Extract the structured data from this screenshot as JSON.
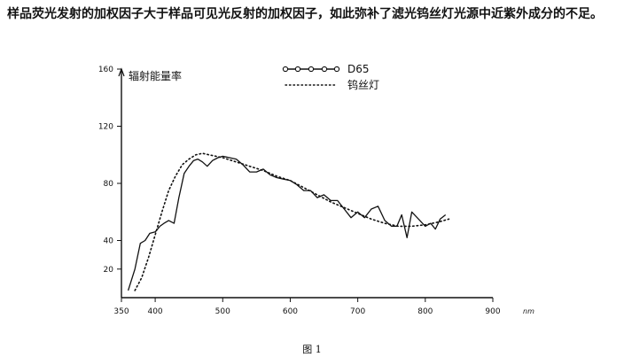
{
  "paragraph": "样品荧光发射的加权因子大于样品可见光反射的加权因子，如此弥补了滤光钨丝灯光源中近紫外成分的不足。",
  "caption": "图 1",
  "chart_data": {
    "type": "line",
    "title": "",
    "ylabel": "辐射能量率",
    "xlabel": "",
    "x_unit": "nm",
    "xlim": [
      350,
      900
    ],
    "ylim": [
      0,
      160
    ],
    "x_ticks": [
      "350",
      "400",
      "500",
      "600",
      "700",
      "800",
      "900"
    ],
    "y_ticks": [
      "20",
      "40",
      "80",
      "120",
      "160"
    ],
    "legend_position": "top-center",
    "series": [
      {
        "name": "D65",
        "style": "solid",
        "color": "#111111",
        "x": [
          360,
          370,
          378,
          385,
          392,
          400,
          407,
          413,
          420,
          428,
          435,
          443,
          450,
          457,
          463,
          470,
          477,
          485,
          493,
          500,
          510,
          520,
          530,
          540,
          550,
          560,
          570,
          580,
          590,
          600,
          610,
          620,
          630,
          640,
          650,
          660,
          670,
          680,
          690,
          700,
          710,
          720,
          730,
          740,
          750,
          758,
          765,
          773,
          780,
          790,
          800,
          808,
          815,
          822,
          830
        ],
        "y": [
          5,
          20,
          38,
          40,
          45,
          46,
          50,
          52,
          54,
          52,
          70,
          87,
          92,
          96,
          97,
          95,
          92,
          96,
          98,
          99,
          98,
          97,
          93,
          88,
          88,
          90,
          86,
          84,
          83,
          82,
          79,
          75,
          75,
          70,
          72,
          68,
          68,
          62,
          56,
          60,
          56,
          62,
          64,
          54,
          50,
          50,
          58,
          42,
          60,
          55,
          50,
          52,
          48,
          55,
          58
        ]
      },
      {
        "name": "钨丝灯",
        "style": "dotted",
        "color": "#111111",
        "x": [
          370,
          380,
          390,
          400,
          410,
          420,
          430,
          440,
          450,
          460,
          470,
          480,
          490,
          500,
          520,
          540,
          560,
          580,
          600,
          620,
          640,
          660,
          680,
          700,
          720,
          740,
          760,
          780,
          800,
          820,
          835
        ],
        "y": [
          5,
          14,
          28,
          44,
          60,
          75,
          85,
          93,
          97,
          100,
          101,
          100,
          99,
          98,
          95,
          92,
          89,
          85,
          82,
          77,
          72,
          67,
          63,
          59,
          55,
          52,
          50,
          50,
          51,
          53,
          55
        ]
      }
    ]
  }
}
